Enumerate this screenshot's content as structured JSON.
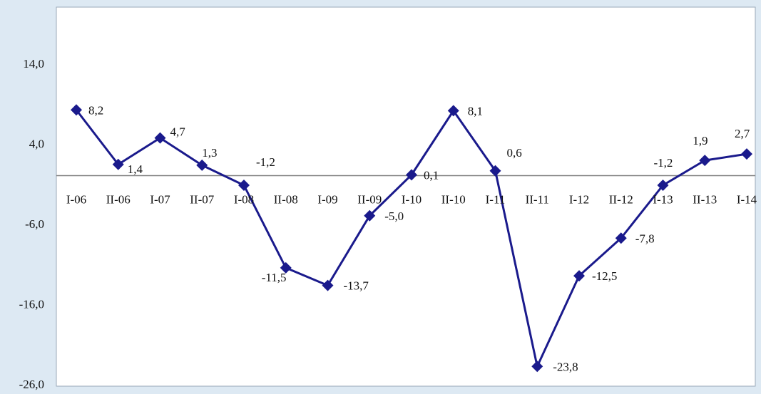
{
  "chart_data": {
    "type": "line",
    "categories": [
      "I-06",
      "II-06",
      "I-07",
      "II-07",
      "I-08",
      "II-08",
      "I-09",
      "II-09",
      "I-10",
      "II-10",
      "I-11",
      "II-11",
      "I-12",
      "II-12",
      "I-13",
      "II-13",
      "I-14"
    ],
    "series": [
      {
        "values": [
          8.2,
          1.4,
          4.7,
          1.3,
          -1.2,
          -11.5,
          -13.7,
          -5.0,
          0.1,
          8.1,
          0.6,
          -23.8,
          -12.5,
          -7.8,
          -1.2,
          1.9,
          2.7
        ],
        "value_labels": [
          "8,2",
          "1,4",
          "4,7",
          "1,3",
          "-1,2",
          "-11,5",
          "-13,7",
          "-5,0",
          "0,1",
          "8,1",
          "0,6",
          "-23,8",
          "-12,5",
          "-7,8",
          "-1,2",
          "1,9",
          "2,7"
        ],
        "color": "#1a1a8c"
      }
    ],
    "yticks": [
      14.0,
      4.0,
      -6.0,
      -16.0,
      -26.0
    ],
    "ytick_labels": [
      "14,0",
      "4,0",
      "-6,0",
      "-16,0",
      "-26,0"
    ],
    "ylim": [
      -26.0,
      24.0
    ],
    "title": "",
    "xlabel": "",
    "ylabel": "",
    "grid": false,
    "legend": "none",
    "background_color": "#dde9f3",
    "plot_background": "#ffffff",
    "axis_line_color": "#808080"
  }
}
